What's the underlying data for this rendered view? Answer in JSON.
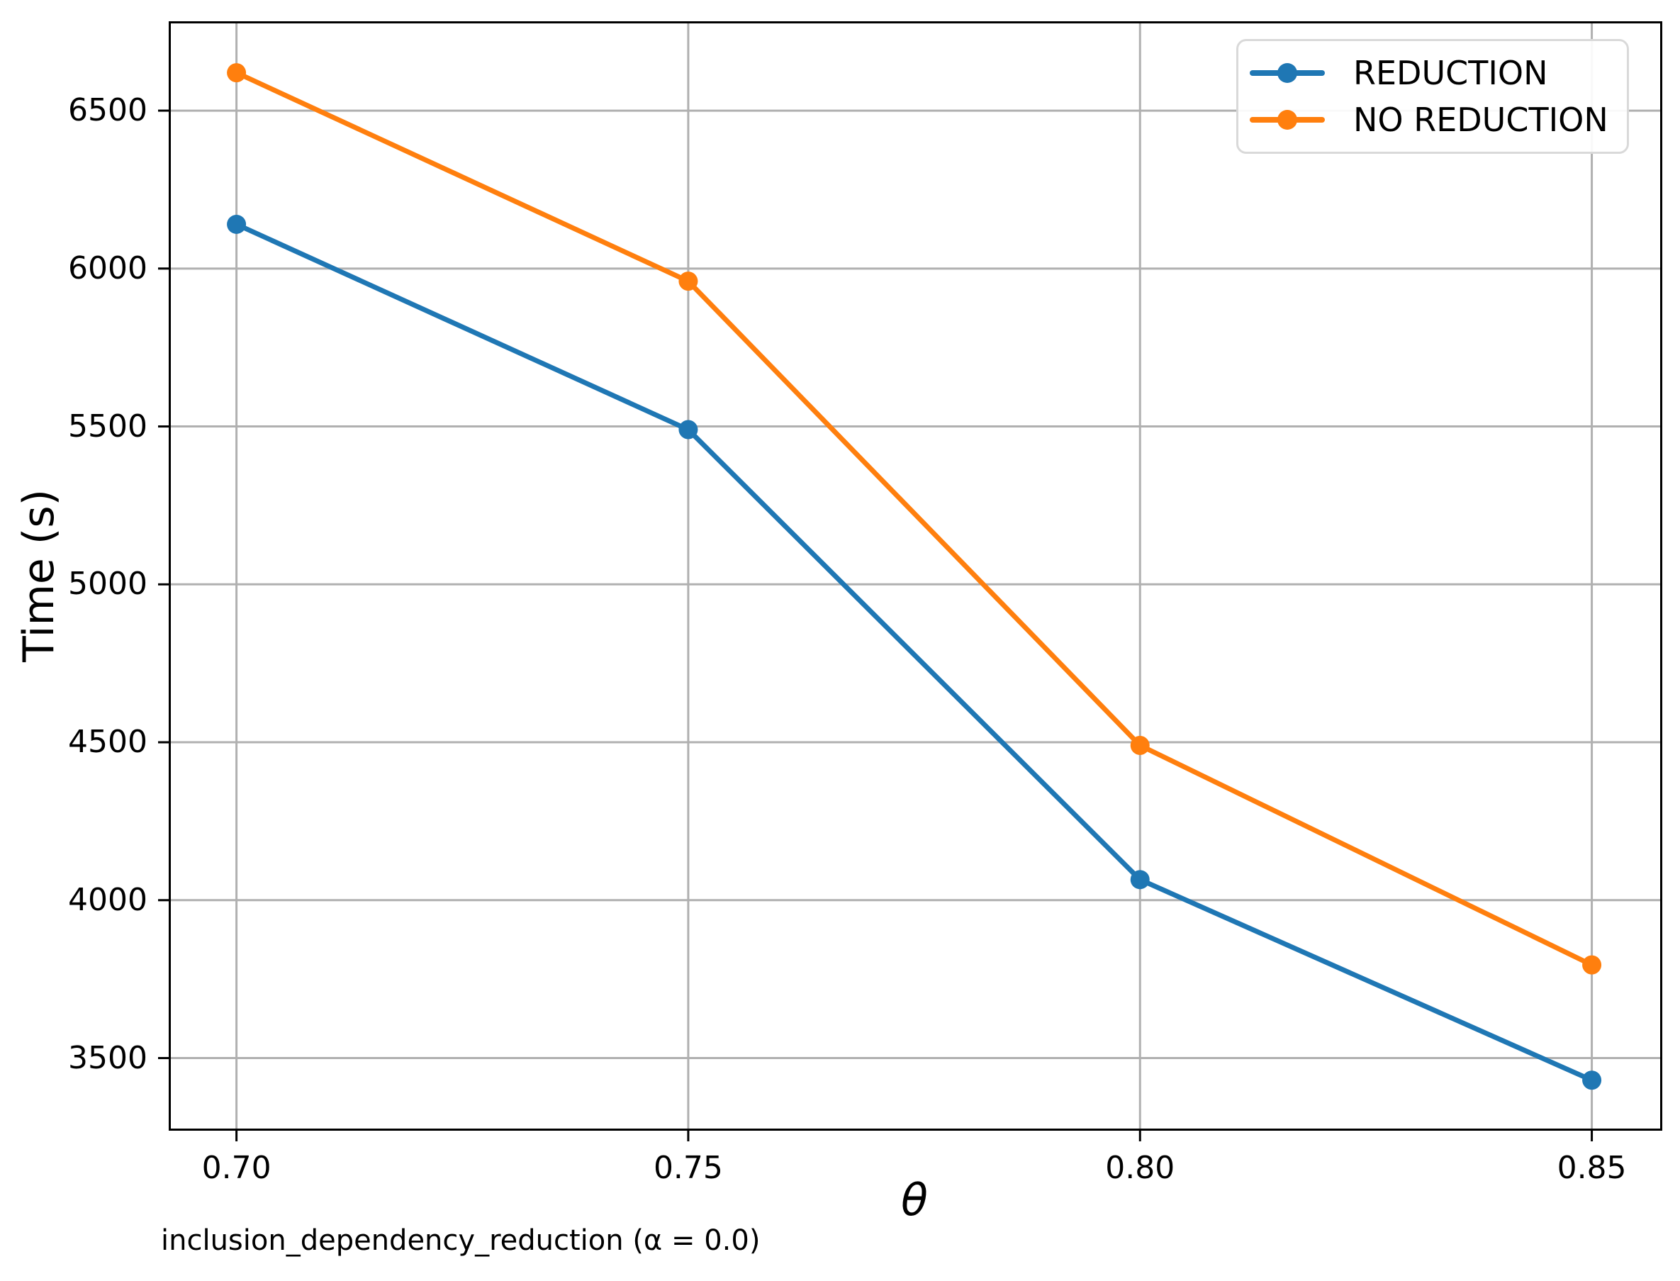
{
  "chart_data": {
    "type": "line",
    "xlabel": "θ",
    "ylabel": "Time (s)",
    "caption": "inclusion_dependency_reduction (α = 0.0)",
    "x": [
      0.7,
      0.75,
      0.8,
      0.85
    ],
    "series": [
      {
        "name": "REDUCTION",
        "color": "#1f77b4",
        "values": [
          6140,
          5490,
          4065,
          3430
        ]
      },
      {
        "name": "NO REDUCTION",
        "color": "#ff7f0e",
        "values": [
          6620,
          5960,
          4490,
          3795
        ]
      }
    ],
    "xlim": [
      0.6925,
      0.8578
    ],
    "ylim": [
      3270,
      6783
    ],
    "xticks": {
      "values": [
        0.7,
        0.75,
        0.8,
        0.85
      ],
      "labels": [
        "0.70",
        "0.75",
        "0.80",
        "0.85"
      ]
    },
    "yticks": {
      "values": [
        3500,
        4000,
        4500,
        5000,
        5500,
        6000,
        6500
      ],
      "labels": [
        "3500",
        "4000",
        "4500",
        "5000",
        "5500",
        "6000",
        "6500"
      ]
    },
    "grid": true,
    "legend_position": "upper-right",
    "line_width": 7,
    "marker_radius": 13.5
  },
  "colors": {
    "background": "#ffffff",
    "grid": "#b0b0b0",
    "spine": "#000000",
    "text": "#000000",
    "legend_border": "#d9d9d9"
  }
}
